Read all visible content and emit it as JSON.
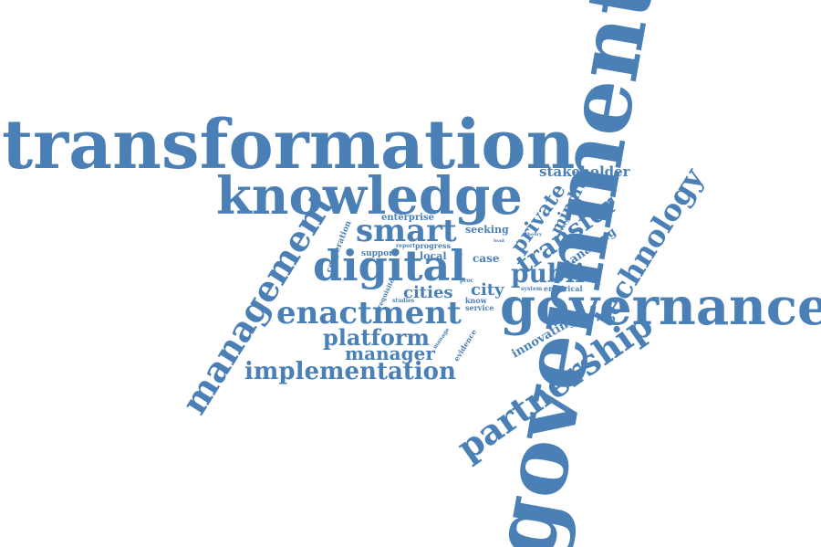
{
  "style": {
    "word_color": "#4a80b5",
    "background": "#ffffff"
  },
  "words": {
    "government": "government",
    "transformation": "transformation",
    "governance": "governance",
    "knowledge": "knowledge",
    "digital": "digital",
    "management": "management",
    "enactment": "enactment",
    "partnership": "partnership",
    "technology": "technology",
    "implementation": "implementation",
    "smart": "smart",
    "public": "public",
    "platform": "platform",
    "manager": "manager",
    "transfer": "transfer",
    "private": "private",
    "stakeholder": "stakeholder",
    "mindful": "mindful",
    "innovating": "innovating",
    "managing": "managing",
    "cities": "cities",
    "city": "city",
    "cooperation": "cooperation",
    "enterprise": "enterprise",
    "seeking": "seeking",
    "local": "local",
    "case": "case",
    "support": "support",
    "progress": "progress",
    "report": "report",
    "requisite": "requisite",
    "studies": "studies",
    "empirical": "empirical",
    "system": "system",
    "evidence": "evidence",
    "service": "service",
    "know": "know",
    "proc": "proc",
    "manage": "manage",
    "theory": "theory",
    "delivery": "delivery",
    "lead": "lead",
    "basic": "basic"
  }
}
